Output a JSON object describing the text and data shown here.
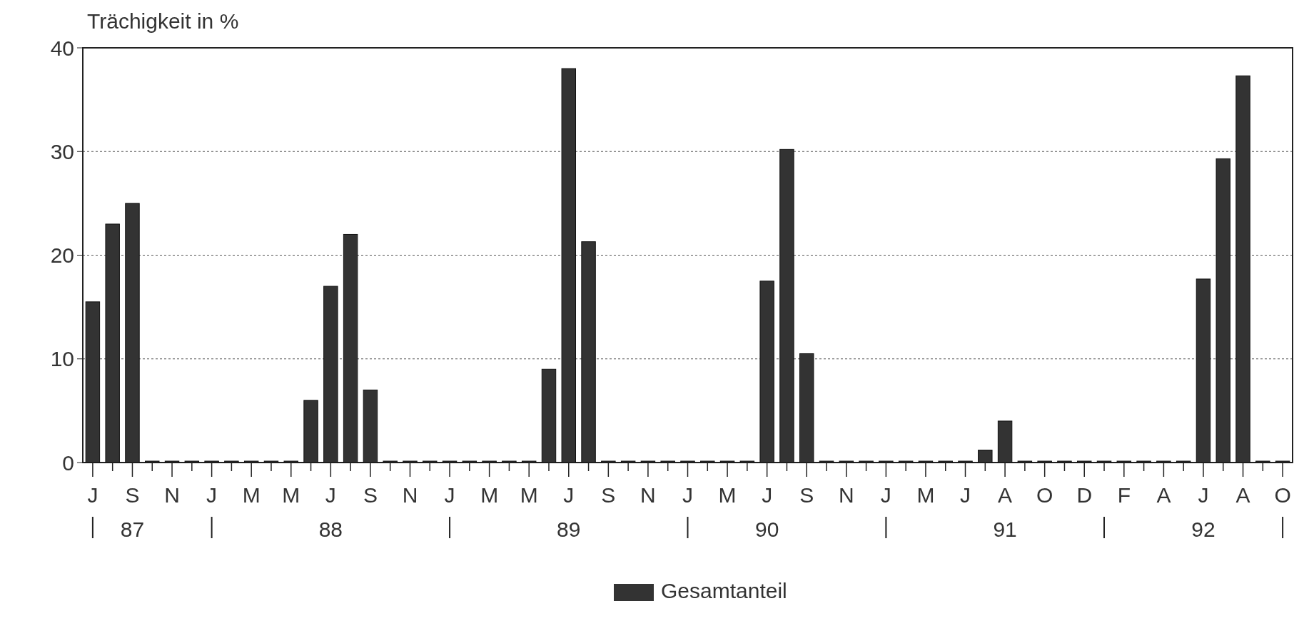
{
  "chart_data": {
    "type": "bar",
    "ylabel": "Trächigkeit in %",
    "categories": [
      "J",
      null,
      "S\n87",
      null,
      "N",
      null,
      "J",
      null,
      "M",
      null,
      "M",
      null,
      "J\n88",
      null,
      "S",
      null,
      "N",
      null,
      "J",
      null,
      "M",
      null,
      "M",
      null,
      "J\n89",
      null,
      "S",
      null,
      "N",
      null,
      "J",
      null,
      "M",
      null,
      "J\n90",
      null,
      "S",
      null,
      "N",
      null,
      "J",
      null,
      "M",
      null,
      "J",
      null,
      "A\n91",
      null,
      "O",
      null,
      "D",
      null,
      "F",
      null,
      "A",
      null,
      "J\n92",
      null,
      "A",
      null,
      "O"
    ],
    "series": [
      {
        "name": "Gesamtanteil",
        "color": "#333333",
        "values": [
          15.5,
          23,
          25,
          0,
          0,
          0,
          0,
          0,
          0,
          0,
          0,
          6,
          17,
          22,
          7,
          0,
          0,
          0,
          0,
          0,
          0,
          0,
          0,
          9,
          38,
          21.3,
          0,
          0,
          0,
          0,
          0,
          0,
          0,
          0,
          17.5,
          30.2,
          10.5,
          0,
          0,
          0,
          0,
          0,
          0,
          0,
          0,
          1.2,
          4,
          0,
          0,
          0,
          0,
          0,
          0,
          0,
          0,
          0,
          17.7,
          29.3,
          37.3,
          0,
          0
        ]
      }
    ],
    "ylim": [
      0,
      40
    ],
    "yticks": [
      0,
      10,
      20,
      30,
      40
    ],
    "grid": "y",
    "legend": "bottom"
  }
}
